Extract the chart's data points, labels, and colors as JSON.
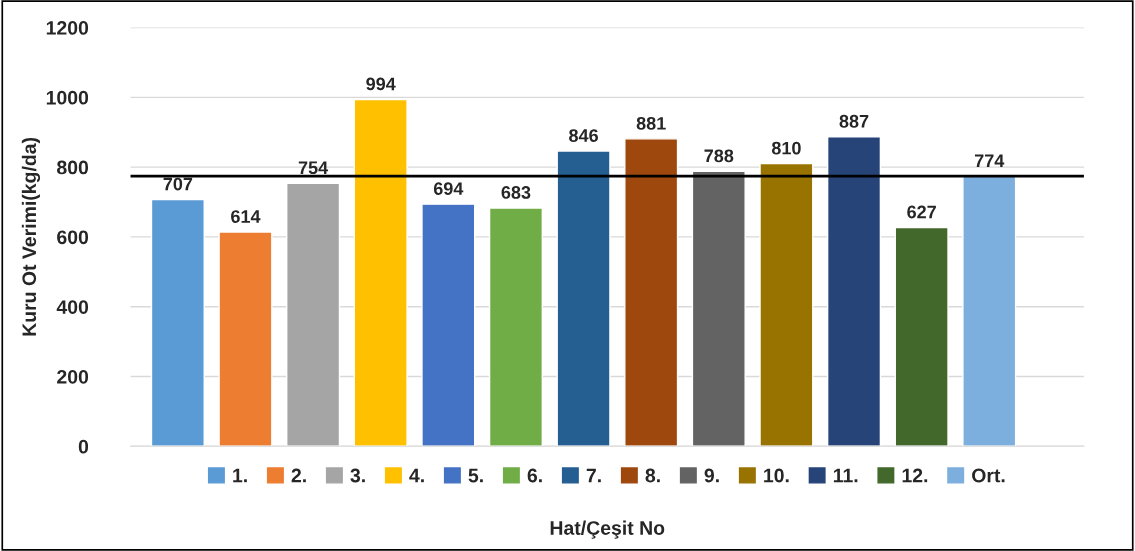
{
  "chart_data": {
    "type": "bar",
    "xlabel": "Hat/Çeşit No",
    "ylabel": "Kuru Ot Verimi(kg/da)",
    "categories": [
      null,
      null,
      null,
      null,
      null,
      null,
      null,
      null,
      null,
      null,
      null,
      null,
      null
    ],
    "stacked": true,
    "series": [
      {
        "name": "1.",
        "color": "#5b9bd5",
        "values": [
          707,
          null,
          null,
          null,
          null,
          null,
          null,
          null,
          null,
          null,
          null,
          null,
          null
        ]
      },
      {
        "name": "2.",
        "color": "#ed7d31",
        "values": [
          null,
          614,
          null,
          null,
          null,
          null,
          null,
          null,
          null,
          null,
          null,
          null,
          null
        ]
      },
      {
        "name": "3.",
        "color": "#a5a5a5",
        "values": [
          null,
          null,
          754,
          null,
          null,
          null,
          null,
          null,
          null,
          null,
          null,
          null,
          null
        ]
      },
      {
        "name": "4.",
        "color": "#ffc000",
        "values": [
          null,
          null,
          null,
          994,
          null,
          null,
          null,
          null,
          null,
          null,
          null,
          null,
          null
        ]
      },
      {
        "name": "5.",
        "color": "#4472c4",
        "values": [
          null,
          null,
          null,
          null,
          694,
          null,
          null,
          null,
          null,
          null,
          null,
          null,
          null
        ]
      },
      {
        "name": "6.",
        "color": "#70ad47",
        "values": [
          null,
          null,
          null,
          null,
          null,
          683,
          null,
          null,
          null,
          null,
          null,
          null,
          null
        ]
      },
      {
        "name": "7.",
        "color": "#255e91",
        "values": [
          null,
          null,
          null,
          null,
          null,
          null,
          846,
          null,
          null,
          null,
          null,
          null,
          null
        ]
      },
      {
        "name": "8.",
        "color": "#9e480e",
        "values": [
          null,
          null,
          null,
          null,
          null,
          null,
          null,
          881,
          null,
          null,
          null,
          null,
          null
        ]
      },
      {
        "name": "9.",
        "color": "#636363",
        "values": [
          null,
          null,
          null,
          null,
          null,
          null,
          null,
          null,
          788,
          null,
          null,
          null,
          null
        ]
      },
      {
        "name": "10.",
        "color": "#997300",
        "values": [
          null,
          null,
          null,
          null,
          null,
          null,
          null,
          null,
          null,
          810,
          null,
          null,
          null
        ]
      },
      {
        "name": "11.",
        "color": "#264478",
        "values": [
          null,
          null,
          null,
          null,
          null,
          null,
          null,
          null,
          null,
          null,
          887,
          null,
          null
        ]
      },
      {
        "name": "12.",
        "color": "#43682b",
        "values": [
          null,
          null,
          null,
          null,
          null,
          null,
          null,
          null,
          null,
          null,
          null,
          627,
          null
        ]
      },
      {
        "name": "Ort.",
        "color": "#7cafdd",
        "values": [
          null,
          null,
          null,
          null,
          null,
          null,
          null,
          null,
          null,
          null,
          null,
          null,
          774
        ]
      }
    ],
    "ylim": [
      0,
      1200
    ],
    "yticks": [
      0,
      200,
      400,
      600,
      800,
      1000,
      1200
    ],
    "ref_lines": [
      {
        "axis": "y",
        "value": 774,
        "color": "#000000"
      }
    ],
    "data_labels": true,
    "grid": "y",
    "legend": "bottom"
  }
}
